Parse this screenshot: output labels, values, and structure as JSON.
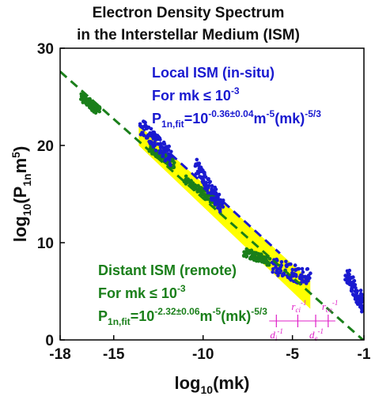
{
  "chart_data": {
    "type": "scatter",
    "title": [
      "Electron Density Spectrum",
      "in the Interstellar Medium (ISM)"
    ],
    "xlabel": {
      "main": "log",
      "sub": "10",
      "rest": "(mk)"
    },
    "ylabel": {
      "main": "log",
      "sub": "10",
      "rest1": "(P",
      "sub2": "1n",
      "rest2": "m",
      "sup": "5",
      "rest3": ")"
    },
    "xlim": [
      -18,
      -1
    ],
    "ylim": [
      0,
      30
    ],
    "xticks": [
      -18,
      -15,
      -10,
      -5,
      -1
    ],
    "yticks": [
      0,
      10,
      20,
      30
    ],
    "grid": false,
    "colors": {
      "local": "#1a1ad0",
      "distant": "#1a7f1a",
      "band": "#ffff00",
      "scale": "#e020c8"
    },
    "annotations": {
      "local": {
        "heading": "Local ISM (in-situ)",
        "cond_pre": "For mk",
        "cond_op": "≤",
        "cond_base": "10",
        "cond_exp": "-3",
        "fit": {
          "p": "P",
          "p_sub": "1n,fit",
          "eq": "=10",
          "eq_sup": "-0.36±0.04",
          "m": "m",
          "m_sup": "-5",
          "mk": "(mk)",
          "mk_sup": "-5/3"
        }
      },
      "distant": {
        "heading": "Distant ISM (remote)",
        "cond_pre": "For mk",
        "cond_op": "≤",
        "cond_base": "10",
        "cond_exp": "-3",
        "fit": {
          "p": "P",
          "p_sub": "1n,fit",
          "eq": "=10",
          "eq_sup": "-2.32±0.06",
          "m": "m",
          "m_sup": "-5",
          "mk": "(mk)",
          "mk_sup": "-5/3"
        }
      }
    },
    "fit_lines": [
      {
        "series": "local",
        "x": [
          -13.6,
          -5.7
        ],
        "y": [
          22.1,
          8.9
        ]
      },
      {
        "series": "distant",
        "x": [
          -18,
          -1.05
        ],
        "y": [
          27.6,
          0
        ]
      }
    ],
    "band": {
      "x_start": -13.6,
      "x_end": -4.0,
      "upper_at_start": 22.1,
      "lower_at_start": 20.0,
      "upper_at_end": 6.1,
      "lower_at_end": 3.2
    },
    "series": [
      {
        "key": "distant_remote",
        "segments": [
          {
            "x": [
              -16.8,
              -15.8
            ],
            "y": [
              25.0,
              23.5
            ]
          },
          {
            "x": [
              -13.0,
              -11.6
            ],
            "y": [
              19.8,
              18.0
            ]
          },
          {
            "x": [
              -11.0,
              -9.0
            ],
            "y": [
              16.5,
              13.8
            ]
          },
          {
            "x": [
              -7.7,
              -6.3
            ],
            "y": [
              9.0,
              8.1
            ]
          }
        ]
      },
      {
        "key": "local_insitu",
        "segments": [
          {
            "x": [
              -13.5,
              -11.8
            ],
            "y": [
              22.0,
              18.8
            ]
          },
          {
            "x": [
              -10.4,
              -8.9
            ],
            "y": [
              18.0,
              13.5
            ]
          },
          {
            "x": [
              -6.1,
              -4.0
            ],
            "y": [
              7.7,
              6.3
            ]
          },
          {
            "x": [
              -2.0,
              -1.0
            ],
            "y": [
              6.8,
              3.5
            ]
          }
        ]
      }
    ],
    "scale_markers": [
      {
        "x": -5.9,
        "base": "d",
        "sub": "i",
        "sup": "-1"
      },
      {
        "x": -4.7,
        "base": "r",
        "sub": "ci",
        "sup": "-1"
      },
      {
        "x": -3.7,
        "base": "d",
        "sub": "e",
        "sup": "-1"
      },
      {
        "x": -3.0,
        "base": "r",
        "sub": "ce",
        "sup": "-1"
      }
    ]
  }
}
